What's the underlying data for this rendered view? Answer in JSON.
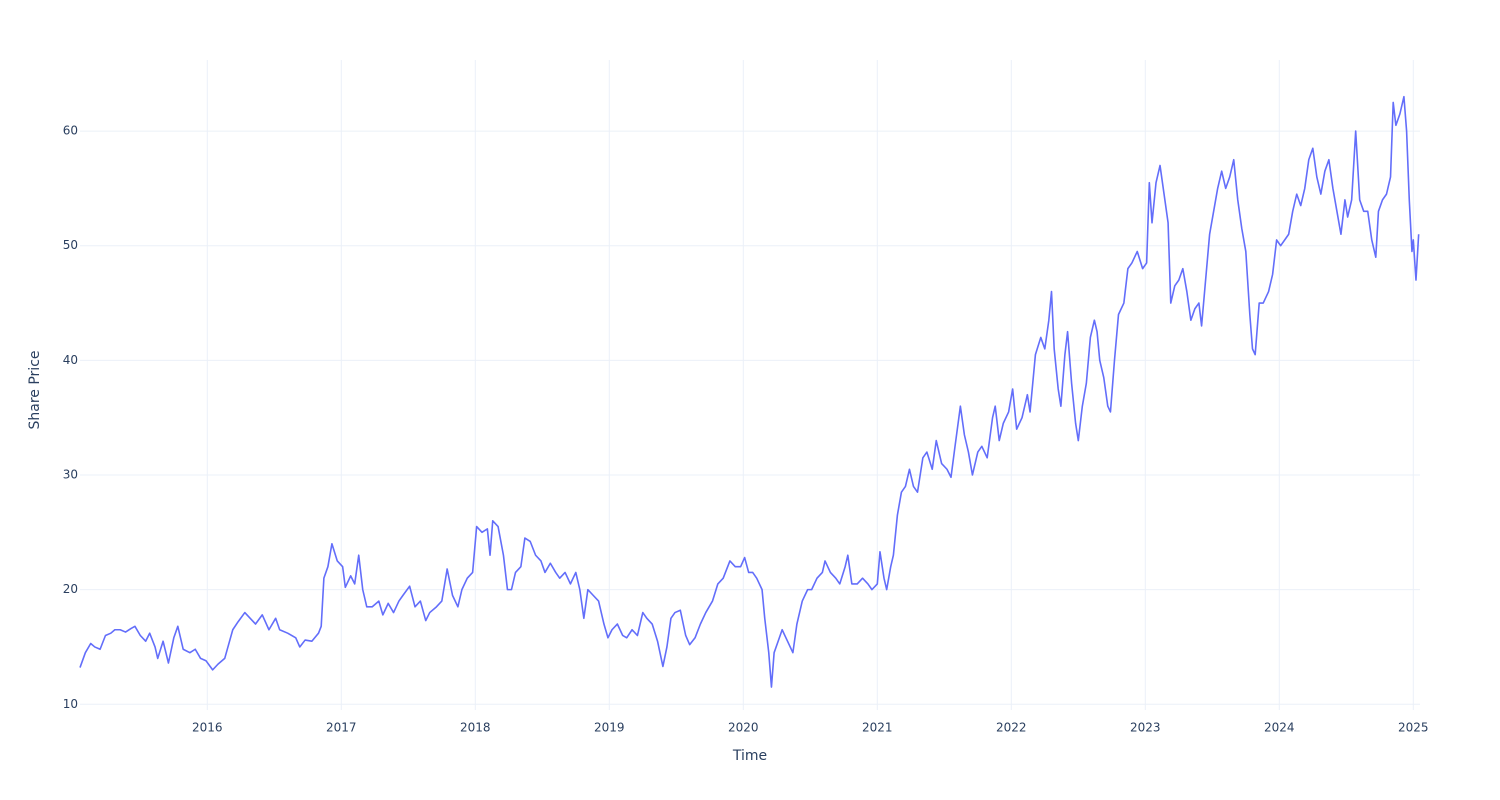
{
  "chart_data": {
    "type": "line",
    "x_label": "Time",
    "y_label": "Share Price",
    "grid": true,
    "xlim": [
      2015.05,
      2025.05
    ],
    "xticks": [
      2016,
      2017,
      2018,
      2019,
      2020,
      2021,
      2022,
      2023,
      2024,
      2025
    ],
    "ylim": [
      9.5,
      66.2
    ],
    "yticks": [
      10,
      20,
      30,
      40,
      50,
      60
    ],
    "series": [
      {
        "color": "#636efa",
        "x": [
          2015.05,
          2015.09,
          2015.13,
          2015.16,
          2015.2,
          2015.24,
          2015.28,
          2015.31,
          2015.35,
          2015.39,
          2015.43,
          2015.46,
          2015.5,
          2015.54,
          2015.57,
          2015.61,
          2015.63,
          2015.67,
          2015.71,
          2015.75,
          2015.78,
          2015.82,
          2015.87,
          2015.91,
          2015.95,
          2015.99,
          2016.04,
          2016.08,
          2016.13,
          2016.19,
          2016.23,
          2016.28,
          2016.32,
          2016.36,
          2016.41,
          2016.46,
          2016.51,
          2016.54,
          2016.6,
          2016.66,
          2016.69,
          2016.73,
          2016.78,
          2016.83,
          2016.85,
          2016.87,
          2016.9,
          2016.93,
          2016.97,
          2017.01,
          2017.03,
          2017.07,
          2017.1,
          2017.13,
          2017.16,
          2017.19,
          2017.23,
          2017.28,
          2017.31,
          2017.35,
          2017.39,
          2017.43,
          2017.46,
          2017.51,
          2017.55,
          2017.59,
          2017.63,
          2017.66,
          2017.71,
          2017.75,
          2017.79,
          2017.83,
          2017.87,
          2017.9,
          2017.94,
          2017.98,
          2018.01,
          2018.05,
          2018.09,
          2018.11,
          2018.13,
          2018.17,
          2018.21,
          2018.24,
          2018.27,
          2018.3,
          2018.34,
          2018.37,
          2018.41,
          2018.45,
          2018.49,
          2018.52,
          2018.56,
          2018.6,
          2018.63,
          2018.67,
          2018.71,
          2018.75,
          2018.78,
          2018.81,
          2018.84,
          2018.88,
          2018.92,
          2018.96,
          2018.99,
          2019.02,
          2019.06,
          2019.1,
          2019.13,
          2019.17,
          2019.21,
          2019.25,
          2019.28,
          2019.32,
          2019.36,
          2019.4,
          2019.43,
          2019.46,
          2019.49,
          2019.53,
          2019.57,
          2019.6,
          2019.64,
          2019.68,
          2019.72,
          2019.77,
          2019.81,
          2019.85,
          2019.9,
          2019.94,
          2019.98,
          2020.01,
          2020.04,
          2020.07,
          2020.1,
          2020.14,
          2020.16,
          2020.19,
          2020.21,
          2020.23,
          2020.26,
          2020.29,
          2020.33,
          2020.37,
          2020.4,
          2020.44,
          2020.48,
          2020.51,
          2020.55,
          2020.59,
          2020.61,
          2020.65,
          2020.69,
          2020.72,
          2020.76,
          2020.78,
          2020.81,
          2020.85,
          2020.89,
          2020.93,
          2020.96,
          2021.0,
          2021.02,
          2021.05,
          2021.07,
          2021.1,
          2021.12,
          2021.15,
          2021.18,
          2021.21,
          2021.24,
          2021.27,
          2021.3,
          2021.34,
          2021.37,
          2021.41,
          2021.44,
          2021.48,
          2021.52,
          2021.55,
          2021.58,
          2021.62,
          2021.65,
          2021.68,
          2021.71,
          2021.75,
          2021.78,
          2021.82,
          2021.86,
          2021.88,
          2021.91,
          2021.94,
          2021.98,
          2022.01,
          2022.04,
          2022.08,
          2022.12,
          2022.14,
          2022.18,
          2022.22,
          2022.25,
          2022.28,
          2022.3,
          2022.32,
          2022.35,
          2022.37,
          2022.4,
          2022.42,
          2022.45,
          2022.48,
          2022.5,
          2022.53,
          2022.56,
          2022.59,
          2022.62,
          2022.64,
          2022.66,
          2022.69,
          2022.72,
          2022.74,
          2022.77,
          2022.8,
          2022.84,
          2022.87,
          2022.9,
          2022.94,
          2022.98,
          2023.01,
          2023.03,
          2023.05,
          2023.08,
          2023.11,
          2023.14,
          2023.17,
          2023.19,
          2023.22,
          2023.25,
          2023.28,
          2023.31,
          2023.34,
          2023.37,
          2023.4,
          2023.42,
          2023.45,
          2023.48,
          2023.51,
          2023.54,
          2023.57,
          2023.6,
          2023.63,
          2023.66,
          2023.69,
          2023.72,
          2023.75,
          2023.78,
          2023.8,
          2023.82,
          2023.85,
          2023.88,
          2023.92,
          2023.95,
          2023.98,
          2024.01,
          2024.04,
          2024.07,
          2024.1,
          2024.13,
          2024.16,
          2024.19,
          2024.22,
          2024.25,
          2024.28,
          2024.31,
          2024.34,
          2024.37,
          2024.4,
          2024.43,
          2024.46,
          2024.49,
          2024.51,
          2024.54,
          2024.57,
          2024.6,
          2024.63,
          2024.66,
          2024.69,
          2024.72,
          2024.74,
          2024.77,
          2024.8,
          2024.83,
          2024.85,
          2024.87,
          2024.9,
          2024.93,
          2024.95,
          2024.97,
          2024.99,
          2025.0,
          2025.02,
          2025.04
        ],
        "values": [
          13.2,
          14.5,
          15.3,
          15.0,
          14.8,
          16.0,
          16.2,
          16.5,
          16.5,
          16.3,
          16.6,
          16.8,
          16.0,
          15.5,
          16.2,
          15.0,
          14.0,
          15.5,
          13.6,
          15.8,
          16.8,
          14.8,
          14.5,
          14.8,
          14.0,
          13.8,
          13.0,
          13.5,
          14.0,
          16.5,
          17.2,
          18.0,
          17.5,
          17.0,
          17.8,
          16.5,
          17.5,
          16.5,
          16.2,
          15.8,
          15.0,
          15.6,
          15.5,
          16.2,
          16.8,
          21.0,
          22.0,
          24.0,
          22.5,
          22.0,
          20.2,
          21.2,
          20.5,
          23.0,
          20.0,
          18.5,
          18.5,
          19.0,
          17.8,
          18.8,
          18.0,
          19.0,
          19.5,
          20.3,
          18.5,
          19.0,
          17.3,
          18.0,
          18.5,
          19.0,
          21.8,
          19.5,
          18.5,
          20.0,
          21.0,
          21.5,
          25.5,
          25.0,
          25.3,
          23.0,
          26.0,
          25.5,
          23.0,
          20.0,
          20.0,
          21.5,
          22.0,
          24.5,
          24.2,
          23.0,
          22.5,
          21.5,
          22.3,
          21.5,
          21.0,
          21.5,
          20.5,
          21.5,
          20.0,
          17.5,
          20.0,
          19.5,
          19.0,
          17.0,
          15.8,
          16.5,
          17.0,
          16.0,
          15.8,
          16.5,
          16.0,
          18.0,
          17.5,
          17.0,
          15.5,
          13.3,
          15.0,
          17.5,
          18.0,
          18.2,
          16.0,
          15.2,
          15.8,
          17.0,
          18.0,
          19.0,
          20.5,
          21.0,
          22.5,
          22.0,
          22.0,
          22.8,
          21.5,
          21.5,
          21.0,
          20.0,
          17.5,
          14.5,
          11.5,
          14.5,
          15.5,
          16.5,
          15.5,
          14.5,
          17.0,
          19.0,
          20.0,
          20.0,
          21.0,
          21.5,
          22.5,
          21.5,
          21.0,
          20.5,
          22.0,
          23.0,
          20.5,
          20.5,
          21.0,
          20.5,
          20.0,
          20.5,
          23.3,
          21.0,
          20.0,
          22.0,
          23.0,
          26.5,
          28.5,
          29.0,
          30.5,
          29.0,
          28.5,
          31.5,
          32.0,
          30.5,
          33.0,
          31.0,
          30.5,
          29.8,
          32.5,
          36.0,
          33.5,
          32.0,
          30.0,
          32.0,
          32.5,
          31.5,
          35.0,
          36.0,
          33.0,
          34.5,
          35.5,
          37.5,
          34.0,
          35.0,
          37.0,
          35.5,
          40.5,
          42.0,
          41.0,
          43.5,
          46.0,
          41.0,
          37.5,
          36.0,
          40.5,
          42.5,
          38.0,
          34.5,
          33.0,
          36.0,
          38.0,
          42.0,
          43.5,
          42.5,
          40.0,
          38.5,
          36.0,
          35.5,
          40.0,
          44.0,
          45.0,
          48.0,
          48.5,
          49.5,
          48.0,
          48.5,
          55.5,
          52.0,
          55.5,
          57.0,
          54.5,
          52.0,
          45.0,
          46.5,
          47.0,
          48.0,
          46.0,
          43.5,
          44.5,
          45.0,
          43.0,
          47.0,
          51.0,
          53.0,
          55.0,
          56.5,
          55.0,
          56.0,
          57.5,
          54.0,
          51.5,
          49.5,
          44.0,
          41.0,
          40.5,
          45.0,
          45.0,
          46.0,
          47.5,
          50.5,
          50.0,
          50.5,
          51.0,
          53.0,
          54.5,
          53.5,
          55.0,
          57.5,
          58.5,
          56.0,
          54.5,
          56.5,
          57.5,
          55.0,
          53.0,
          51.0,
          54.0,
          52.5,
          54.0,
          60.0,
          54.0,
          53.0,
          53.0,
          50.5,
          49.0,
          53.0,
          54.0,
          54.5,
          56.0,
          62.5,
          60.5,
          61.5,
          63.0,
          60.0,
          54.0,
          49.5,
          50.5,
          47.0,
          51.0
        ]
      }
    ]
  }
}
